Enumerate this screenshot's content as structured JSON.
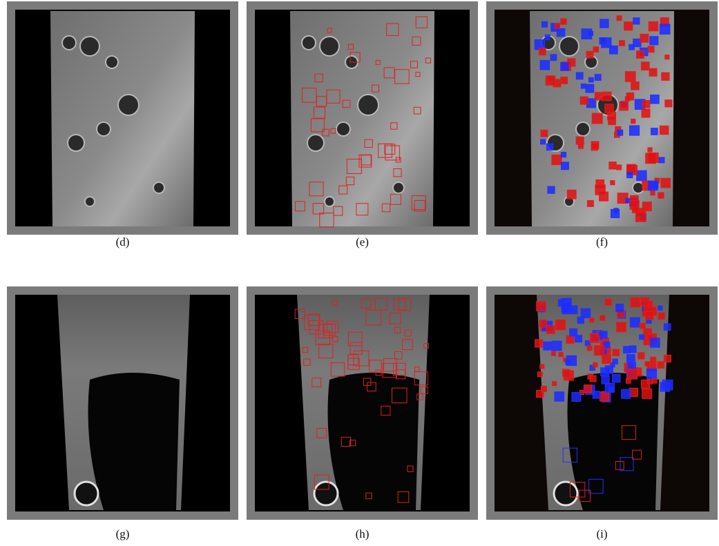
{
  "panels": [
    {
      "caption": "(d)"
    },
    {
      "caption": "(e)"
    },
    {
      "caption": "(f)"
    },
    {
      "caption": "(g)"
    },
    {
      "caption": "(h)"
    },
    {
      "caption": "(i)"
    }
  ]
}
